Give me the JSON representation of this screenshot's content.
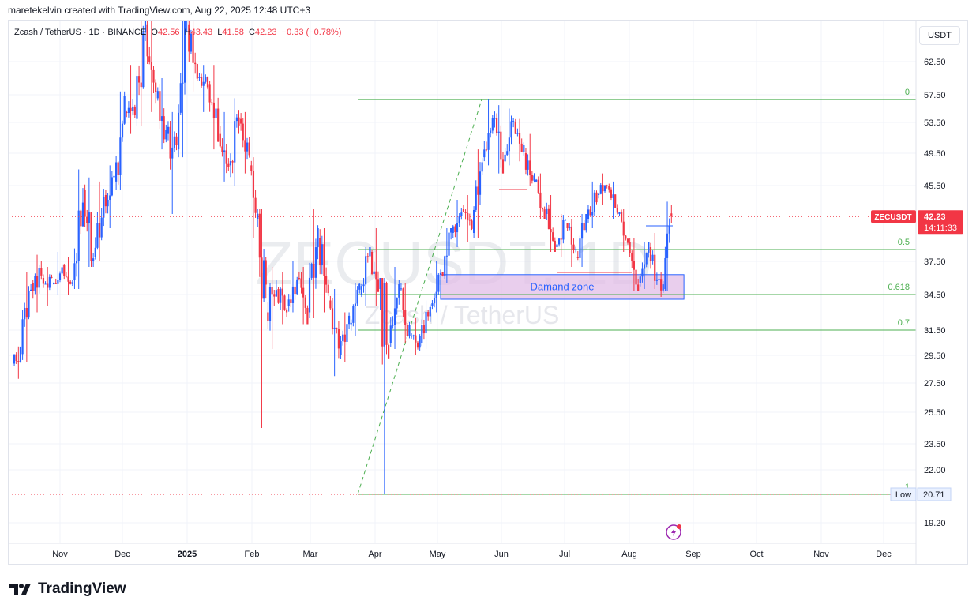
{
  "header": {
    "credit": "maretekelvin created with TradingView.com, Aug 22, 2025 12:48 UTC+3"
  },
  "legend": {
    "symbol": "Zcash / TetherUS · 1D · BINANCE",
    "o_label": "O",
    "o_value": "42.56",
    "h_label": "H",
    "h_value": "43.43",
    "l_label": "L",
    "l_value": "41.58",
    "c_label": "C",
    "c_value": "42.23",
    "change": "−0.33 (−0.78%)"
  },
  "currency_button": "USDT",
  "watermark": {
    "ticker": "ZECUSDT, 1D",
    "name": "Zcash / TetherUS"
  },
  "chart_data": {
    "type": "candlestick",
    "x_ticks": [
      "Nov",
      "Dec",
      "2025",
      "Feb",
      "Mar",
      "Apr",
      "May",
      "Jun",
      "Jul",
      "Aug",
      "Sep",
      "Oct",
      "Nov",
      "Dec"
    ],
    "y_ticks": [
      "62.50",
      "57.50",
      "53.50",
      "49.50",
      "45.50",
      "37.50",
      "34.50",
      "31.50",
      "29.50",
      "27.50",
      "25.50",
      "23.50",
      "22.00",
      "19.20"
    ],
    "last_price": {
      "label": "ZECUSDT",
      "value": "42.23",
      "countdown": "14:11:33"
    },
    "low_marker": {
      "label": "Low",
      "value": "20.71"
    },
    "fib_levels": [
      {
        "label": "0",
        "price": 56.8
      },
      {
        "label": "0.5",
        "price": 38.75
      },
      {
        "label": "0.618",
        "price": 34.5
      },
      {
        "label": "0.7",
        "price": 31.5
      },
      {
        "label": "1",
        "price": 20.71
      }
    ],
    "zone": {
      "label": "Damand zone",
      "top": 36.3,
      "bottom": 34.1,
      "start": "2025-05-03",
      "end": "2025-08-28"
    },
    "colors": {
      "up": "#2962ff",
      "down": "#f23645",
      "fib": "#4caf50",
      "zone_fill": "#e1bee7",
      "zone_border": "#2962ff"
    },
    "candles": [
      {
        "d": "2024-10-10",
        "o": 28.9,
        "h": 30.2,
        "l": 27.8,
        "c": 29.6
      },
      {
        "d": "2024-10-14",
        "o": 29.6,
        "h": 36.5,
        "l": 29.0,
        "c": 35.5
      },
      {
        "d": "2024-10-19",
        "o": 35.5,
        "h": 38.2,
        "l": 33.0,
        "c": 36.0
      },
      {
        "d": "2024-10-24",
        "o": 36.0,
        "h": 37.0,
        "l": 33.5,
        "c": 35.5
      },
      {
        "d": "2024-10-29",
        "o": 35.5,
        "h": 38.5,
        "l": 34.5,
        "c": 37.2
      },
      {
        "d": "2024-11-03",
        "o": 37.2,
        "h": 38.0,
        "l": 34.5,
        "c": 35.8
      },
      {
        "d": "2024-11-08",
        "o": 35.8,
        "h": 47.5,
        "l": 35.0,
        "c": 45.0
      },
      {
        "d": "2024-11-13",
        "o": 45.0,
        "h": 46.5,
        "l": 37.0,
        "c": 38.0
      },
      {
        "d": "2024-11-18",
        "o": 38.0,
        "h": 46.0,
        "l": 37.5,
        "c": 44.5
      },
      {
        "d": "2024-11-23",
        "o": 44.5,
        "h": 48.0,
        "l": 41.0,
        "c": 46.0
      },
      {
        "d": "2024-11-28",
        "o": 46.0,
        "h": 58.0,
        "l": 45.0,
        "c": 55.0
      },
      {
        "d": "2024-12-03",
        "o": 55.0,
        "h": 62.0,
        "l": 52.0,
        "c": 54.0
      },
      {
        "d": "2024-12-08",
        "o": 54.0,
        "h": 70.0,
        "l": 53.0,
        "c": 68.0
      },
      {
        "d": "2024-12-13",
        "o": 68.0,
        "h": 69.0,
        "l": 55.0,
        "c": 57.0
      },
      {
        "d": "2024-12-18",
        "o": 57.0,
        "h": 60.0,
        "l": 50.0,
        "c": 52.0
      },
      {
        "d": "2024-12-23",
        "o": 52.0,
        "h": 55.0,
        "l": 42.5,
        "c": 50.0
      },
      {
        "d": "2024-12-28",
        "o": 50.0,
        "h": 72.0,
        "l": 49.0,
        "c": 68.0
      },
      {
        "d": "2025-01-02",
        "o": 68.0,
        "h": 70.0,
        "l": 58.0,
        "c": 60.0
      },
      {
        "d": "2025-01-07",
        "o": 60.0,
        "h": 62.0,
        "l": 55.0,
        "c": 59.0
      },
      {
        "d": "2025-01-12",
        "o": 59.0,
        "h": 62.0,
        "l": 50.0,
        "c": 52.0
      },
      {
        "d": "2025-01-17",
        "o": 52.0,
        "h": 55.0,
        "l": 46.0,
        "c": 48.0
      },
      {
        "d": "2025-01-22",
        "o": 48.0,
        "h": 57.0,
        "l": 45.5,
        "c": 54.0
      },
      {
        "d": "2025-01-27",
        "o": 54.0,
        "h": 55.0,
        "l": 47.0,
        "c": 48.0
      },
      {
        "d": "2025-02-01",
        "o": 48.0,
        "h": 49.0,
        "l": 40.0,
        "c": 42.0
      },
      {
        "d": "2025-02-04",
        "o": 42.0,
        "h": 43.0,
        "l": 24.5,
        "c": 33.0
      },
      {
        "d": "2025-02-09",
        "o": 33.0,
        "h": 37.0,
        "l": 30.0,
        "c": 35.0
      },
      {
        "d": "2025-02-14",
        "o": 35.0,
        "h": 36.5,
        "l": 32.0,
        "c": 33.5
      },
      {
        "d": "2025-02-19",
        "o": 33.5,
        "h": 37.5,
        "l": 33.0,
        "c": 36.0
      },
      {
        "d": "2025-02-24",
        "o": 36.0,
        "h": 37.0,
        "l": 32.0,
        "c": 33.0
      },
      {
        "d": "2025-03-01",
        "o": 33.0,
        "h": 43.0,
        "l": 32.5,
        "c": 40.0
      },
      {
        "d": "2025-03-06",
        "o": 40.0,
        "h": 41.0,
        "l": 33.0,
        "c": 34.0
      },
      {
        "d": "2025-03-11",
        "o": 34.0,
        "h": 35.0,
        "l": 28.0,
        "c": 29.5
      },
      {
        "d": "2025-03-16",
        "o": 29.5,
        "h": 33.0,
        "l": 29.0,
        "c": 32.0
      },
      {
        "d": "2025-03-21",
        "o": 32.0,
        "h": 35.5,
        "l": 31.0,
        "c": 34.5
      },
      {
        "d": "2025-03-26",
        "o": 34.5,
        "h": 39.0,
        "l": 33.5,
        "c": 38.5
      },
      {
        "d": "2025-03-31",
        "o": 38.5,
        "h": 41.0,
        "l": 33.5,
        "c": 35.0
      },
      {
        "d": "2025-04-04",
        "o": 35.0,
        "h": 36.0,
        "l": 20.71,
        "c": 30.5
      },
      {
        "d": "2025-04-09",
        "o": 30.5,
        "h": 37.0,
        "l": 30.0,
        "c": 35.0
      },
      {
        "d": "2025-04-14",
        "o": 35.0,
        "h": 35.5,
        "l": 30.5,
        "c": 31.0
      },
      {
        "d": "2025-04-19",
        "o": 31.0,
        "h": 32.5,
        "l": 29.5,
        "c": 30.5
      },
      {
        "d": "2025-04-24",
        "o": 30.5,
        "h": 34.0,
        "l": 30.0,
        "c": 33.5
      },
      {
        "d": "2025-04-29",
        "o": 33.5,
        "h": 37.5,
        "l": 33.0,
        "c": 36.5
      },
      {
        "d": "2025-05-04",
        "o": 36.5,
        "h": 41.0,
        "l": 35.5,
        "c": 40.5
      },
      {
        "d": "2025-05-09",
        "o": 40.5,
        "h": 44.0,
        "l": 39.0,
        "c": 43.0
      },
      {
        "d": "2025-05-14",
        "o": 43.0,
        "h": 44.5,
        "l": 39.5,
        "c": 40.5
      },
      {
        "d": "2025-05-19",
        "o": 40.5,
        "h": 50.0,
        "l": 40.0,
        "c": 49.0
      },
      {
        "d": "2025-05-24",
        "o": 49.0,
        "h": 56.8,
        "l": 48.0,
        "c": 54.0
      },
      {
        "d": "2025-05-29",
        "o": 54.0,
        "h": 56.0,
        "l": 47.0,
        "c": 48.5
      },
      {
        "d": "2025-06-03",
        "o": 48.5,
        "h": 55.5,
        "l": 48.0,
        "c": 53.5
      },
      {
        "d": "2025-06-08",
        "o": 53.5,
        "h": 54.0,
        "l": 48.5,
        "c": 49.5
      },
      {
        "d": "2025-06-13",
        "o": 49.5,
        "h": 52.0,
        "l": 45.5,
        "c": 46.0
      },
      {
        "d": "2025-06-18",
        "o": 46.0,
        "h": 47.0,
        "l": 42.0,
        "c": 42.5
      },
      {
        "d": "2025-06-23",
        "o": 42.5,
        "h": 44.5,
        "l": 38.5,
        "c": 39.0
      },
      {
        "d": "2025-06-28",
        "o": 39.0,
        "h": 42.5,
        "l": 38.0,
        "c": 41.5
      },
      {
        "d": "2025-07-03",
        "o": 41.5,
        "h": 42.0,
        "l": 37.0,
        "c": 38.0
      },
      {
        "d": "2025-07-08",
        "o": 38.0,
        "h": 42.5,
        "l": 37.0,
        "c": 42.0
      },
      {
        "d": "2025-07-13",
        "o": 42.0,
        "h": 46.0,
        "l": 41.0,
        "c": 44.5
      },
      {
        "d": "2025-07-18",
        "o": 44.5,
        "h": 47.0,
        "l": 43.5,
        "c": 45.5
      },
      {
        "d": "2025-07-23",
        "o": 45.5,
        "h": 46.0,
        "l": 42.0,
        "c": 42.5
      },
      {
        "d": "2025-07-28",
        "o": 42.5,
        "h": 43.0,
        "l": 38.5,
        "c": 39.5
      },
      {
        "d": "2025-08-02",
        "o": 39.5,
        "h": 40.0,
        "l": 34.8,
        "c": 35.5
      },
      {
        "d": "2025-08-07",
        "o": 35.5,
        "h": 39.5,
        "l": 35.0,
        "c": 39.0
      },
      {
        "d": "2025-08-12",
        "o": 39.0,
        "h": 40.5,
        "l": 35.0,
        "c": 35.8
      },
      {
        "d": "2025-08-16",
        "o": 35.8,
        "h": 36.5,
        "l": 34.3,
        "c": 35.0
      },
      {
        "d": "2025-08-19",
        "o": 35.0,
        "h": 43.8,
        "l": 34.8,
        "c": 42.56
      },
      {
        "d": "2025-08-22",
        "o": 42.56,
        "h": 43.43,
        "l": 41.58,
        "c": 42.23
      }
    ]
  },
  "brand": {
    "footer": "TradingView",
    "footer_icon": "tradingview-logo-icon",
    "event_icon": "lightning-event-icon"
  }
}
